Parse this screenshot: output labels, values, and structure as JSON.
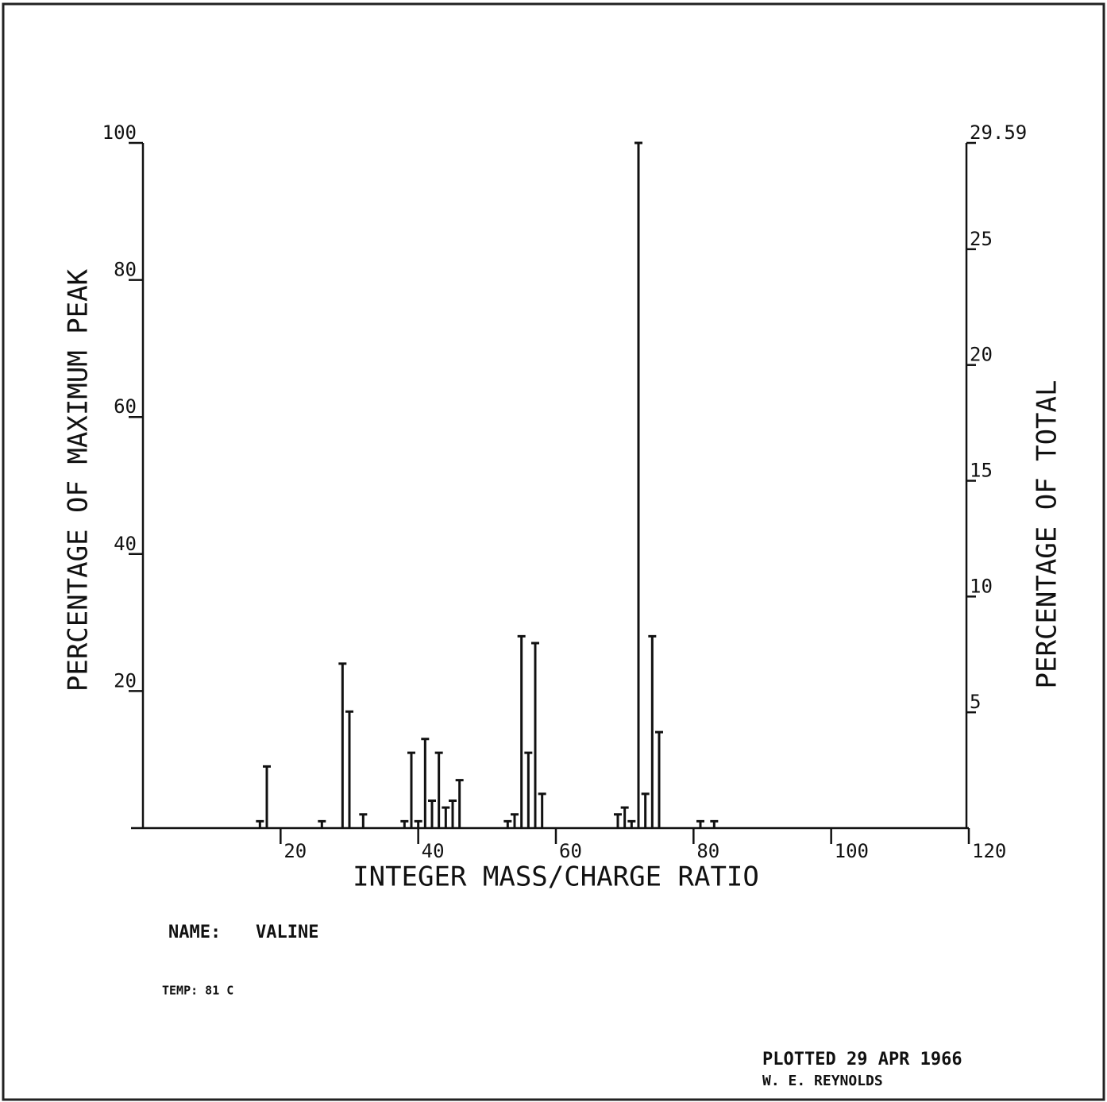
{
  "chart_data": {
    "type": "stem",
    "y_label": "PERCENTAGE OF MAXIMUM PEAK",
    "y2_label": "PERCENTAGE OF TOTAL",
    "x_label": "INTEGER MASS/CHARGE RATIO",
    "x": [
      17,
      18,
      26,
      29,
      30,
      32,
      38,
      39,
      40,
      41,
      42,
      43,
      44,
      45,
      46,
      53,
      54,
      55,
      56,
      57,
      58,
      69,
      70,
      71,
      72,
      73,
      74,
      75,
      81,
      83
    ],
    "values": [
      1,
      9,
      1,
      24,
      17,
      2,
      1,
      11,
      1,
      13,
      4,
      11,
      3,
      4,
      7,
      1,
      2,
      28,
      11,
      27,
      5,
      2,
      3,
      1,
      100,
      5,
      28,
      14,
      1,
      1
    ],
    "color": "#111111",
    "xlim": [
      0,
      120
    ],
    "xticks": [
      20,
      40,
      60,
      80,
      100,
      120
    ],
    "ylim": [
      0,
      100
    ],
    "yticks": [
      20,
      40,
      60,
      80,
      100
    ],
    "y2lim": [
      0,
      29.59
    ],
    "y2ticks": [
      5,
      10,
      15,
      20,
      25,
      29.59
    ],
    "name_label": "NAME:",
    "name": "VALINE",
    "temp": "TEMP: 81 C",
    "plotted": "PLOTTED 29 APR 1966",
    "author": "W. E. REYNOLDS"
  }
}
